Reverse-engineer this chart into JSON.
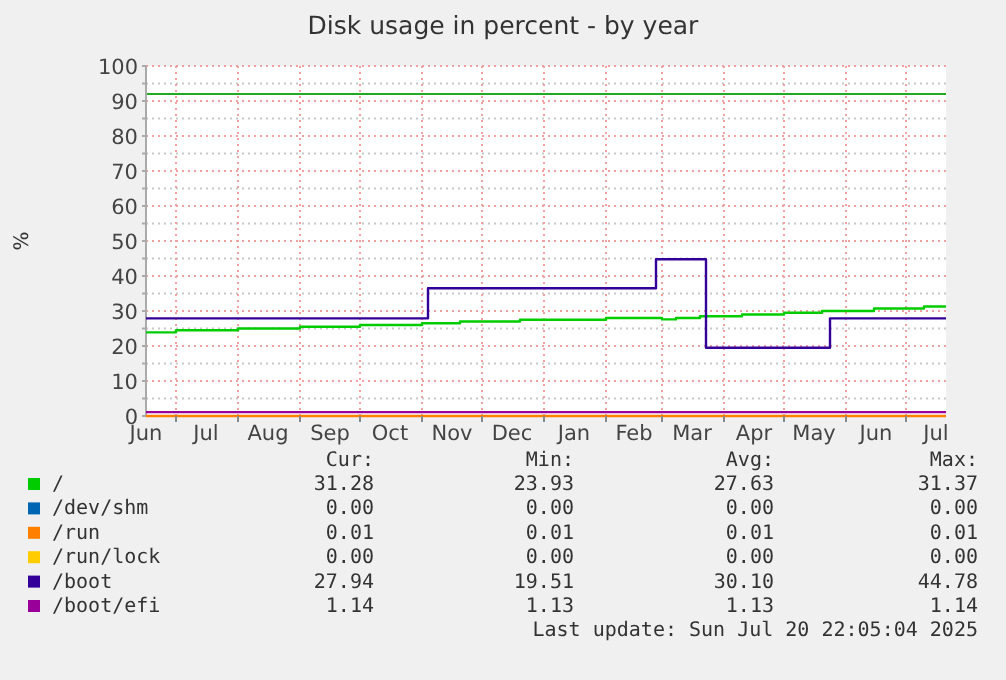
{
  "chart_data": {
    "type": "step",
    "title": "Disk usage in percent - by year",
    "ylabel": "%",
    "xlim": [
      "2024-06-16",
      "2025-07-21"
    ],
    "xticks": [
      {
        "value": "2024-06-16",
        "label": "Jun"
      },
      {
        "value": "2024-07-01",
        "label": null
      },
      {
        "value": "2024-07-16",
        "label": "Jul"
      },
      {
        "value": "2024-08-01",
        "label": null
      },
      {
        "value": "2024-08-16",
        "label": "Aug"
      },
      {
        "value": "2024-09-01",
        "label": null
      },
      {
        "value": "2024-09-16",
        "label": "Sep"
      },
      {
        "value": "2024-10-01",
        "label": null
      },
      {
        "value": "2024-10-16",
        "label": "Oct"
      },
      {
        "value": "2024-11-01",
        "label": null
      },
      {
        "value": "2024-11-16",
        "label": "Nov"
      },
      {
        "value": "2024-12-01",
        "label": null
      },
      {
        "value": "2024-12-16",
        "label": "Dec"
      },
      {
        "value": "2025-01-01",
        "label": null
      },
      {
        "value": "2025-01-16",
        "label": "Jan"
      },
      {
        "value": "2025-02-01",
        "label": null
      },
      {
        "value": "2025-02-15",
        "label": "Feb"
      },
      {
        "value": "2025-03-01",
        "label": null
      },
      {
        "value": "2025-03-16",
        "label": "Mar"
      },
      {
        "value": "2025-04-01",
        "label": null
      },
      {
        "value": "2025-04-16",
        "label": "Apr"
      },
      {
        "value": "2025-05-01",
        "label": null
      },
      {
        "value": "2025-05-16",
        "label": "May"
      },
      {
        "value": "2025-06-01",
        "label": null
      },
      {
        "value": "2025-06-16",
        "label": "Jun"
      },
      {
        "value": "2025-07-01",
        "label": null
      },
      {
        "value": "2025-07-16",
        "label": "Jul"
      }
    ],
    "ylim": [
      0,
      100
    ],
    "yticks": [
      0,
      {
        "value": 5,
        "label": null
      },
      10,
      {
        "value": 15,
        "label": null
      },
      20,
      {
        "value": 25,
        "label": null
      },
      30,
      {
        "value": 35,
        "label": null
      },
      40,
      {
        "value": 45,
        "label": null
      },
      50,
      {
        "value": 55,
        "label": null
      },
      60,
      {
        "value": 65,
        "label": null
      },
      70,
      {
        "value": 75,
        "label": null
      },
      80,
      {
        "value": 85,
        "label": null
      },
      90,
      {
        "value": 95,
        "label": null
      },
      100
    ],
    "grid": true,
    "legend": "bottom",
    "ref_lines": [
      {
        "axis": "y",
        "value": 92,
        "color": "#22aa22"
      }
    ],
    "series": [
      {
        "name": "/",
        "color": "#00cc00",
        "x": [
          "2024-06-16",
          "2024-07-01",
          "2024-08-01",
          "2024-09-01",
          "2024-10-01",
          "2024-11-01",
          "2024-11-20",
          "2024-12-20",
          "2025-02-01",
          "2025-03-01",
          "2025-03-08",
          "2025-03-20",
          "2025-04-10",
          "2025-05-01",
          "2025-05-20",
          "2025-06-15",
          "2025-07-10",
          "2025-07-21"
        ],
        "values": [
          23.9,
          24.5,
          25.0,
          25.5,
          26.0,
          26.5,
          27.0,
          27.5,
          28.0,
          27.6,
          28.0,
          28.5,
          29.0,
          29.5,
          30.0,
          30.7,
          31.3,
          31.3
        ]
      },
      {
        "name": "/dev/shm",
        "color": "#0066b3",
        "values": [
          null
        ]
      },
      {
        "name": "/run",
        "color": "#ff8000",
        "x": [
          "2024-06-16",
          "2025-07-21"
        ],
        "values": [
          0,
          0
        ]
      },
      {
        "name": "/run/lock",
        "color": "#ffcc00",
        "values": [
          null
        ]
      },
      {
        "name": "/boot",
        "color": "#330099",
        "x": [
          "2024-06-16",
          "2024-11-04",
          "2025-02-26",
          "2025-03-23",
          "2025-05-24",
          "2025-07-21"
        ],
        "values": [
          27.9,
          36.5,
          44.8,
          19.5,
          27.9,
          27.9
        ]
      },
      {
        "name": "/boot/efi",
        "color": "#990099",
        "x": [
          "2024-06-16",
          "2025-07-21"
        ],
        "values": [
          1.1,
          1.1
        ]
      }
    ],
    "annotations": [
      "Cur:",
      "Min:",
      "Avg:",
      "Max:",
      "31.28",
      "23.93",
      "27.63",
      "31.37",
      "0.00",
      "0.00",
      "0.00",
      "0.00",
      "0.01",
      "0.01",
      "0.01",
      "0.01",
      "0.00",
      "0.00",
      "0.00",
      "0.00",
      "27.94",
      "19.51",
      "30.10",
      "44.78",
      "1.14",
      "1.13",
      "1.13",
      "1.14",
      "Last update: Sun Jul 20 22:05:04 2025"
    ]
  }
}
